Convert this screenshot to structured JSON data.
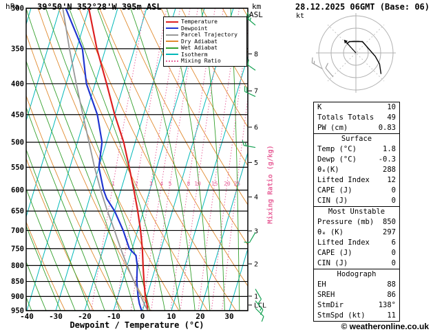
{
  "header": {
    "pressure_unit": "hPa",
    "station_title": "39°50'N 352°28'W 395m ASL",
    "altitude_unit_line1": "km",
    "altitude_unit_line2": "ASL",
    "datetime": "28.12.2025 06GMT (Base: 06)"
  },
  "axes": {
    "pressure_ticks": [
      300,
      350,
      400,
      450,
      500,
      550,
      600,
      650,
      700,
      750,
      800,
      850,
      900,
      950
    ],
    "temp_ticks": [
      -40,
      -30,
      -20,
      -10,
      0,
      10,
      20,
      30
    ],
    "xlabel": "Dewpoint / Temperature (°C)",
    "mixing_ratio_axis_label": "Mixing Ratio (g/kg)",
    "mixing_ratio_values": [
      1,
      2,
      3,
      4,
      5,
      8,
      10,
      15,
      20,
      25
    ],
    "km_ticks": [
      {
        "label": "8",
        "p": 357
      },
      {
        "label": "7",
        "p": 411
      },
      {
        "label": "6",
        "p": 472
      },
      {
        "label": "5",
        "p": 540
      },
      {
        "label": "4",
        "p": 616
      },
      {
        "label": "3",
        "p": 701
      },
      {
        "label": "2",
        "p": 795
      },
      {
        "label": "1",
        "p": 899
      }
    ],
    "lcl": {
      "label": "LCL",
      "p": 930
    }
  },
  "legend": [
    {
      "label": "Temperature",
      "color": "#dd2020",
      "dash": "solid"
    },
    {
      "label": "Dewpoint",
      "color": "#2035d0",
      "dash": "solid"
    },
    {
      "label": "Parcel Trajectory",
      "color": "#979797",
      "dash": "solid"
    },
    {
      "label": "Dry Adiabat",
      "color": "#e08a2e",
      "dash": "solid"
    },
    {
      "label": "Wet Adiabat",
      "color": "#33a02c",
      "dash": "solid"
    },
    {
      "label": "Isotherm",
      "color": "#00b8b8",
      "dash": "solid"
    },
    {
      "label": "Mixing Ratio",
      "color": "#e8649b",
      "dash": "dotted"
    }
  ],
  "chart_data": {
    "type": "line",
    "subtype": "skew-t-log-p-sounding",
    "x_axis": {
      "label": "Dewpoint / Temperature (°C)",
      "min": -40,
      "max": 35
    },
    "y_axis": {
      "label": "hPa",
      "min": 300,
      "max": 950,
      "scale": "log"
    },
    "colors": {
      "temperature": "#dd2020",
      "dewpoint": "#2035d0",
      "parcel": "#979797",
      "dry_adiabat": "#e08a2e",
      "wet_adiabat": "#33a02c",
      "isotherm": "#00b8b8",
      "mixing_ratio": "#e8649b",
      "wind_barb": "#12a050",
      "pressure_line": "#000000"
    },
    "series": [
      {
        "id": "temperature",
        "name": "Temperature",
        "color": "#dd2020",
        "width": 2.2,
        "points": [
          {
            "p": 950,
            "t": 1.8
          },
          {
            "p": 925,
            "t": 0.8
          },
          {
            "p": 900,
            "t": -0.5
          },
          {
            "p": 850,
            "t": -2.5
          },
          {
            "p": 800,
            "t": -4.5
          },
          {
            "p": 750,
            "t": -6.5
          },
          {
            "p": 700,
            "t": -9
          },
          {
            "p": 650,
            "t": -12
          },
          {
            "p": 600,
            "t": -15.5
          },
          {
            "p": 550,
            "t": -19.5
          },
          {
            "p": 500,
            "t": -24
          },
          {
            "p": 450,
            "t": -30
          },
          {
            "p": 400,
            "t": -36
          },
          {
            "p": 350,
            "t": -43
          },
          {
            "p": 300,
            "t": -50
          }
        ]
      },
      {
        "id": "dewpoint",
        "name": "Dewpoint",
        "color": "#2035d0",
        "width": 2.2,
        "points": [
          {
            "p": 950,
            "t": -0.3
          },
          {
            "p": 925,
            "t": -1.8
          },
          {
            "p": 900,
            "t": -3
          },
          {
            "p": 850,
            "t": -5
          },
          {
            "p": 800,
            "t": -6.5
          },
          {
            "p": 770,
            "t": -8
          },
          {
            "p": 750,
            "t": -11
          },
          {
            "p": 700,
            "t": -15
          },
          {
            "p": 650,
            "t": -20
          },
          {
            "p": 620,
            "t": -24
          },
          {
            "p": 600,
            "t": -26
          },
          {
            "p": 550,
            "t": -30
          },
          {
            "p": 500,
            "t": -31.5
          },
          {
            "p": 450,
            "t": -36
          },
          {
            "p": 400,
            "t": -43
          },
          {
            "p": 350,
            "t": -48
          },
          {
            "p": 300,
            "t": -58
          }
        ]
      },
      {
        "id": "parcel",
        "name": "Parcel Trajectory",
        "color": "#979797",
        "width": 1.8,
        "points": [
          {
            "p": 950,
            "t": 1.8
          },
          {
            "p": 930,
            "t": 0.2
          },
          {
            "p": 900,
            "t": -2
          },
          {
            "p": 850,
            "t": -6
          },
          {
            "p": 800,
            "t": -10
          },
          {
            "p": 750,
            "t": -14
          },
          {
            "p": 700,
            "t": -18
          },
          {
            "p": 650,
            "t": -22.5
          },
          {
            "p": 600,
            "t": -27
          },
          {
            "p": 550,
            "t": -31.5
          },
          {
            "p": 500,
            "t": -36
          },
          {
            "p": 450,
            "t": -41
          },
          {
            "p": 400,
            "t": -46.5
          },
          {
            "p": 350,
            "t": -52.5
          },
          {
            "p": 300,
            "t": -59
          }
        ]
      }
    ],
    "wind_barbs": [
      {
        "p": 320,
        "dir": 310,
        "speed": 25
      },
      {
        "p": 380,
        "dir": 305,
        "speed": 20
      },
      {
        "p": 420,
        "dir": 295,
        "speed": 20
      },
      {
        "p": 510,
        "dir": 280,
        "speed": 15
      },
      {
        "p": 705,
        "dir": 210,
        "speed": 10
      },
      {
        "p": 875,
        "dir": 150,
        "speed": 10
      },
      {
        "p": 915,
        "dir": 140,
        "speed": 15
      },
      {
        "p": 941,
        "dir": 135,
        "speed": 10
      }
    ]
  },
  "hodograph": {
    "unit_label": "kt",
    "rings_kt": [
      10,
      20,
      30
    ],
    "trace": [
      {
        "u": -7.1,
        "v": 7.1
      },
      {
        "u": -5,
        "v": 8.7
      },
      {
        "u": 5,
        "v": 8.7
      },
      {
        "u": 14.8,
        "v": -2.6
      },
      {
        "u": 18.1,
        "v": -8.5
      },
      {
        "u": 19.2,
        "v": -16.1
      }
    ],
    "storm": {
      "dir_deg": 138,
      "speed_kt": 11
    },
    "side_barbs": [
      {
        "dir": 300,
        "speed": 15
      },
      {
        "dir": 320,
        "speed": 10
      }
    ]
  },
  "stats": {
    "sections": [
      {
        "header": "",
        "rows": [
          [
            "K",
            "10"
          ],
          [
            "Totals Totals",
            "49"
          ],
          [
            "PW (cm)",
            "0.83"
          ]
        ]
      },
      {
        "header": "Surface",
        "rows": [
          [
            "Temp (°C)",
            "1.8"
          ],
          [
            "Dewp (°C)",
            "-0.3"
          ],
          [
            "θₑ(K)",
            "288"
          ],
          [
            "Lifted Index",
            "12"
          ],
          [
            "CAPE (J)",
            "0"
          ],
          [
            "CIN (J)",
            "0"
          ]
        ]
      },
      {
        "header": "Most Unstable",
        "rows": [
          [
            "Pressure (mb)",
            "850"
          ],
          [
            "θₑ (K)",
            "297"
          ],
          [
            "Lifted Index",
            "6"
          ],
          [
            "CAPE (J)",
            "0"
          ],
          [
            "CIN (J)",
            "0"
          ]
        ]
      },
      {
        "header": "Hodograph",
        "rows": [
          [
            "EH",
            "88"
          ],
          [
            "SREH",
            "86"
          ],
          [
            "StmDir",
            "138°"
          ],
          [
            "StmSpd (kt)",
            "11"
          ]
        ]
      }
    ]
  },
  "footer": {
    "copyright": "© weatheronline.co.uk"
  }
}
